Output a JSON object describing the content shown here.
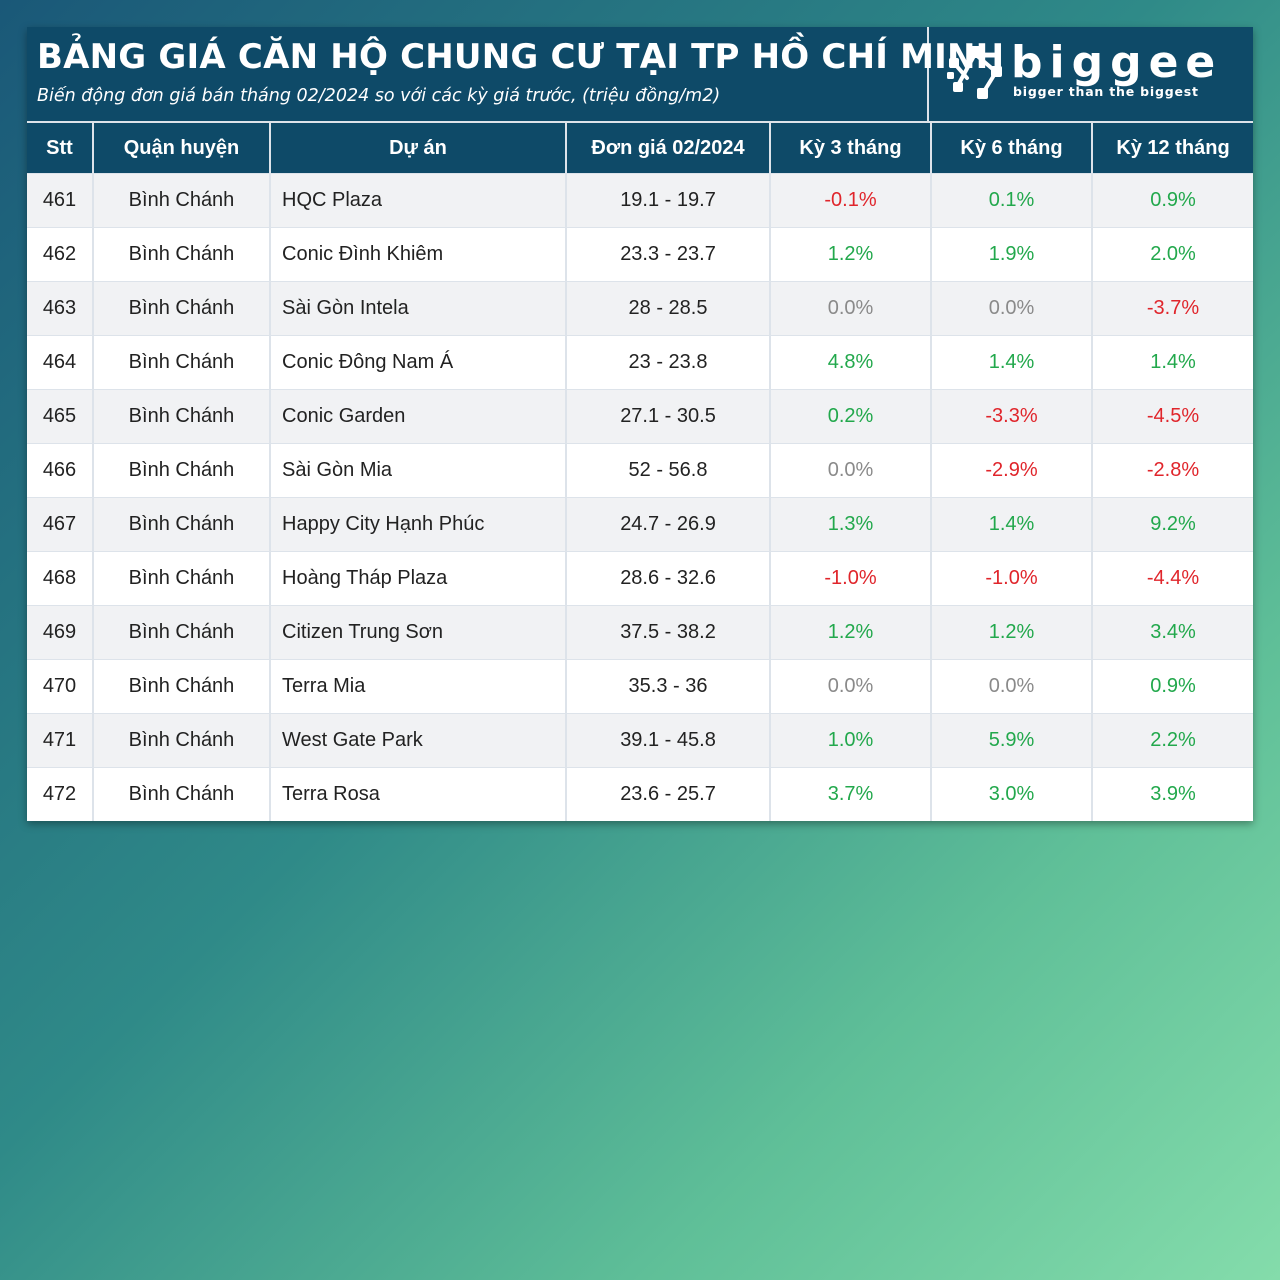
{
  "header": {
    "title": "BẢNG GIÁ CĂN HỘ CHUNG CƯ TẠI TP HỒ CHÍ MINH",
    "subtitle": "Biến động đơn giá bán tháng 02/2024 so với các kỳ giá trước, (triệu đồng/m2)",
    "logo_word": "biggee",
    "logo_tagline": "bigger than the biggest"
  },
  "table": {
    "columns": [
      "Stt",
      "Quận huyện",
      "Dự án",
      "Đơn giá 02/2024",
      "Kỳ 3 tháng",
      "Kỳ 6 tháng",
      "Kỳ 12 tháng"
    ],
    "rows": [
      {
        "stt": "461",
        "district": "Bình Chánh",
        "project": "HQC Plaza",
        "price": "19.1 - 19.7",
        "k3": "-0.1%",
        "k6": "0.1%",
        "k12": "0.9%"
      },
      {
        "stt": "462",
        "district": "Bình Chánh",
        "project": "Conic Đình Khiêm",
        "price": "23.3 - 23.7",
        "k3": "1.2%",
        "k6": "1.9%",
        "k12": "2.0%"
      },
      {
        "stt": "463",
        "district": "Bình Chánh",
        "project": "Sài Gòn Intela",
        "price": "28 - 28.5",
        "k3": "0.0%",
        "k6": "0.0%",
        "k12": "-3.7%"
      },
      {
        "stt": "464",
        "district": "Bình Chánh",
        "project": "Conic Đông Nam Á",
        "price": "23 - 23.8",
        "k3": "4.8%",
        "k6": "1.4%",
        "k12": "1.4%"
      },
      {
        "stt": "465",
        "district": "Bình Chánh",
        "project": "Conic Garden",
        "price": "27.1 - 30.5",
        "k3": "0.2%",
        "k6": "-3.3%",
        "k12": "-4.5%"
      },
      {
        "stt": "466",
        "district": "Bình Chánh",
        "project": "Sài Gòn Mia",
        "price": "52 - 56.8",
        "k3": "0.0%",
        "k6": "-2.9%",
        "k12": "-2.8%"
      },
      {
        "stt": "467",
        "district": "Bình Chánh",
        "project": "Happy City Hạnh Phúc",
        "price": "24.7 - 26.9",
        "k3": "1.3%",
        "k6": "1.4%",
        "k12": "9.2%"
      },
      {
        "stt": "468",
        "district": "Bình Chánh",
        "project": "Hoàng Tháp Plaza",
        "price": "28.6 - 32.6",
        "k3": "-1.0%",
        "k6": "-1.0%",
        "k12": "-4.4%"
      },
      {
        "stt": "469",
        "district": "Bình Chánh",
        "project": "Citizen Trung Sơn",
        "price": "37.5 - 38.2",
        "k3": "1.2%",
        "k6": "1.2%",
        "k12": "3.4%"
      },
      {
        "stt": "470",
        "district": "Bình Chánh",
        "project": "Terra Mia",
        "price": "35.3 - 36",
        "k3": "0.0%",
        "k6": "0.0%",
        "k12": "0.9%"
      },
      {
        "stt": "471",
        "district": "Bình Chánh",
        "project": "West Gate Park",
        "price": "39.1 - 45.8",
        "k3": "1.0%",
        "k6": "5.9%",
        "k12": "2.2%"
      },
      {
        "stt": "472",
        "district": "Bình Chánh",
        "project": "Terra Rosa",
        "price": "23.6 - 25.7",
        "k3": "3.7%",
        "k6": "3.0%",
        "k12": "3.9%"
      }
    ]
  },
  "colors": {
    "header_bg": "#0e4a68",
    "positive": "#22a84c",
    "negative": "#e0252b",
    "neutral": "#8a8a8a"
  }
}
